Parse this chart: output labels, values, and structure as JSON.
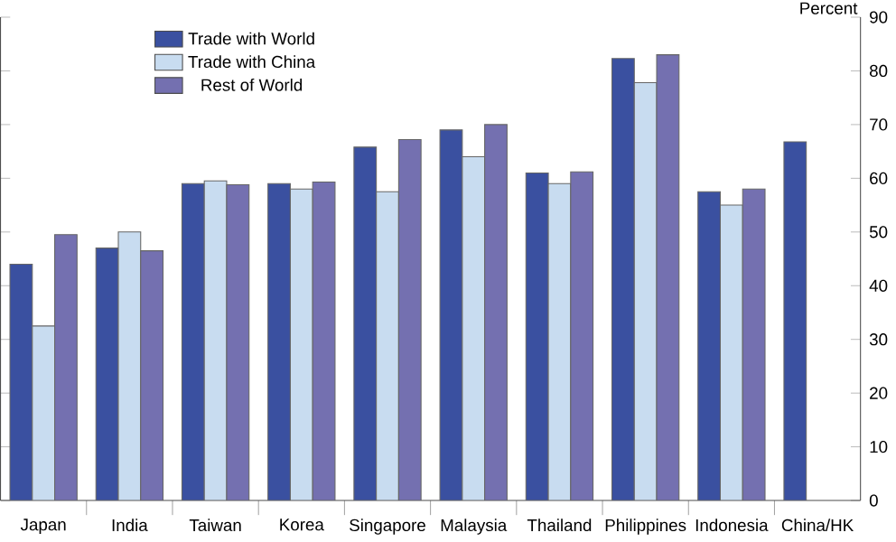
{
  "chart_data": {
    "type": "bar",
    "ylabel": "Percent",
    "categories": [
      "Japan",
      "India",
      "Taiwan",
      "Korea",
      "Singapore",
      "Malaysia",
      "Thailand",
      "Philippines",
      "Indonesia",
      "China/HK"
    ],
    "series": [
      {
        "name": "Trade with World",
        "color": "#3a50a0",
        "values": [
          44,
          47,
          59,
          59,
          65.8,
          69,
          61,
          82.3,
          57.5,
          66.8
        ]
      },
      {
        "name": "Trade with China",
        "color": "#c8dcf0",
        "values": [
          32.5,
          50,
          59.5,
          58,
          57.5,
          64,
          59,
          77.8,
          55,
          null
        ]
      },
      {
        "name": "Rest of World",
        "color": "#7470b0",
        "values": [
          49.5,
          46.5,
          58.8,
          59.3,
          67.2,
          70,
          61.2,
          83,
          58,
          null
        ]
      }
    ],
    "ylim": [
      0,
      90
    ],
    "yticks": [
      0,
      10,
      20,
      30,
      40,
      50,
      60,
      70,
      80,
      90
    ],
    "grid": false,
    "legend": "top left"
  }
}
